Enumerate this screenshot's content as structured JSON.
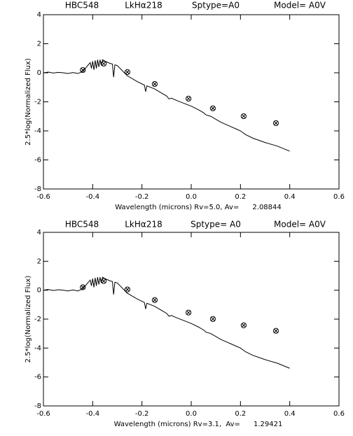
{
  "chart_data": [
    {
      "type": "line",
      "title_parts": [
        "HBC548",
        "LkHα218",
        "Sptype=A0",
        "Model= A0V"
      ],
      "xlabel": "Wavelength (microns) Rv=5.0, Av=      2.08844",
      "ylabel": "2.5*log(Normalized Flux)",
      "xlim": [
        -0.6,
        0.6
      ],
      "xticks": [
        -0.6,
        -0.4,
        -0.2,
        {
          "value": 0,
          "label": "0.0"
        },
        0.2,
        0.4,
        0.6
      ],
      "ylim": [
        -8,
        4
      ],
      "yticks": [
        -8,
        -6,
        -4,
        -2,
        0,
        2,
        4
      ],
      "spectrum": {
        "color": "#000000",
        "x": [
          -0.6,
          -0.58,
          -0.56,
          -0.54,
          -0.52,
          -0.5,
          -0.48,
          -0.46,
          -0.44,
          -0.43,
          -0.42,
          -0.41,
          -0.405,
          -0.4,
          -0.395,
          -0.39,
          -0.385,
          -0.38,
          -0.375,
          -0.37,
          -0.365,
          -0.36,
          -0.35,
          -0.33,
          -0.32,
          -0.315,
          -0.31,
          -0.3,
          -0.26,
          -0.22,
          -0.19,
          -0.185,
          -0.18,
          -0.15,
          -0.12,
          -0.1,
          -0.09,
          -0.08,
          -0.06,
          -0.03,
          0.0,
          0.03,
          0.05,
          0.06,
          0.08,
          0.1,
          0.12,
          0.14,
          0.16,
          0.18,
          0.2,
          0.22,
          0.25,
          0.3,
          0.35,
          0.4
        ],
        "y": [
          0,
          0.05,
          -0.02,
          0.03,
          0.0,
          -0.05,
          0.02,
          -0.05,
          0.1,
          0.3,
          0.5,
          0.7,
          0.3,
          0.8,
          0.2,
          0.85,
          0.3,
          0.9,
          0.4,
          0.9,
          0.5,
          0.9,
          0.8,
          0.65,
          0.6,
          -0.3,
          0.55,
          0.5,
          -0.2,
          -0.6,
          -0.85,
          -1.3,
          -0.9,
          -1.1,
          -1.4,
          -1.6,
          -1.8,
          -1.75,
          -1.9,
          -2.1,
          -2.3,
          -2.55,
          -2.75,
          -2.9,
          -3.0,
          -3.2,
          -3.4,
          -3.55,
          -3.7,
          -3.85,
          -4.0,
          -4.25,
          -4.5,
          -4.8,
          -5.05,
          -5.4
        ]
      },
      "photometry": {
        "color": "#000000",
        "x": [
          -0.44,
          -0.355,
          -0.259,
          -0.148,
          -0.011,
          0.088,
          0.213,
          0.344
        ],
        "y": [
          0.19,
          0.63,
          0.05,
          -0.77,
          -1.78,
          -2.45,
          -2.99,
          -3.47
        ]
      }
    },
    {
      "type": "line",
      "title_parts": [
        "HBC548",
        "LkHα218",
        "Sptype= A0",
        "Model= A0V"
      ],
      "xlabel": "Wavelength (microns) Rv=3.1,  Av=      1.29421",
      "ylabel": "2.5*log(Normalized Flux)",
      "xlim": [
        -0.6,
        0.6
      ],
      "xticks": [
        -0.6,
        -0.4,
        -0.2,
        {
          "value": 0,
          "label": "0.0"
        },
        0.2,
        0.4,
        0.6
      ],
      "ylim": [
        -8,
        4
      ],
      "yticks": [
        -8,
        -6,
        -4,
        -2,
        0,
        2,
        4
      ],
      "spectrum": {
        "color": "#000000",
        "x": [
          -0.6,
          -0.58,
          -0.56,
          -0.54,
          -0.52,
          -0.5,
          -0.48,
          -0.46,
          -0.44,
          -0.43,
          -0.42,
          -0.41,
          -0.405,
          -0.4,
          -0.395,
          -0.39,
          -0.385,
          -0.38,
          -0.375,
          -0.37,
          -0.365,
          -0.36,
          -0.35,
          -0.33,
          -0.32,
          -0.315,
          -0.31,
          -0.3,
          -0.26,
          -0.22,
          -0.19,
          -0.185,
          -0.18,
          -0.15,
          -0.12,
          -0.1,
          -0.09,
          -0.08,
          -0.06,
          -0.03,
          0.0,
          0.03,
          0.05,
          0.06,
          0.08,
          0.1,
          0.12,
          0.14,
          0.16,
          0.18,
          0.2,
          0.22,
          0.25,
          0.3,
          0.35,
          0.4
        ],
        "y": [
          0,
          0.05,
          -0.02,
          0.03,
          0.0,
          -0.05,
          0.02,
          -0.05,
          0.1,
          0.3,
          0.5,
          0.7,
          0.3,
          0.8,
          0.2,
          0.85,
          0.3,
          0.9,
          0.4,
          0.9,
          0.5,
          0.9,
          0.8,
          0.65,
          0.6,
          -0.3,
          0.55,
          0.5,
          -0.2,
          -0.6,
          -0.85,
          -1.3,
          -0.9,
          -1.1,
          -1.4,
          -1.6,
          -1.8,
          -1.75,
          -1.9,
          -2.1,
          -2.3,
          -2.55,
          -2.75,
          -2.9,
          -3.0,
          -3.2,
          -3.4,
          -3.55,
          -3.7,
          -3.85,
          -4.0,
          -4.25,
          -4.5,
          -4.8,
          -5.05,
          -5.4
        ]
      },
      "photometry": {
        "color": "#000000",
        "x": [
          -0.44,
          -0.355,
          -0.259,
          -0.148,
          -0.011,
          0.088,
          0.213,
          0.344
        ],
        "y": [
          0.2,
          0.63,
          0.05,
          -0.68,
          -1.55,
          -1.99,
          -2.43,
          -2.81
        ]
      }
    }
  ]
}
